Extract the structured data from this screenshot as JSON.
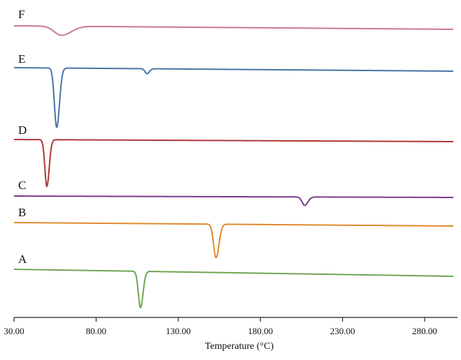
{
  "chart_data": {
    "type": "line",
    "xlabel": "Temperature (°C)",
    "ylabel": "",
    "xlim": [
      30,
      300
    ],
    "x_ticks": [
      "30.00",
      "80.00",
      "130.00",
      "180.00",
      "230.00",
      "280.00"
    ],
    "x_tick_values": [
      30,
      80,
      130,
      180,
      230,
      280
    ],
    "grid": false,
    "legend": "none",
    "series": [
      {
        "name": "F",
        "color": "#c9798f",
        "baseline_start": 0,
        "baseline_end": 0.05,
        "peaks": [
          {
            "x": 59,
            "depth": 0.13,
            "width": 4.5,
            "asym": 1.3
          }
        ]
      },
      {
        "name": "E",
        "color": "#4a72a8",
        "baseline_start": 0,
        "baseline_end": 0.05,
        "peaks": [
          {
            "x": 56,
            "depth": 0.85,
            "width": 1.4,
            "asym": 1.2
          },
          {
            "x": 111,
            "depth": 0.07,
            "width": 1.2,
            "asym": 1.2
          }
        ]
      },
      {
        "name": "D",
        "color": "#b03535",
        "baseline_start": 0,
        "baseline_end": 0.03,
        "peaks": [
          {
            "x": 50,
            "depth": 0.67,
            "width": 1.2,
            "asym": 1.2
          }
        ]
      },
      {
        "name": "C",
        "color": "#7a3a8c",
        "baseline_start": 0,
        "baseline_end": 0.02,
        "peaks": [
          {
            "x": 207,
            "depth": 0.12,
            "width": 1.6,
            "asym": 1.2
          }
        ]
      },
      {
        "name": "B",
        "color": "#e0892a",
        "baseline_start": 0,
        "baseline_end": 0.05,
        "peaks": [
          {
            "x": 153,
            "depth": 0.48,
            "width": 1.5,
            "asym": 1.2
          }
        ]
      },
      {
        "name": "A",
        "color": "#6fa552",
        "baseline_start": 0,
        "baseline_end": 0.1,
        "peaks": [
          {
            "x": 107,
            "depth": 0.52,
            "width": 1.3,
            "asym": 1.2
          }
        ]
      }
    ]
  }
}
